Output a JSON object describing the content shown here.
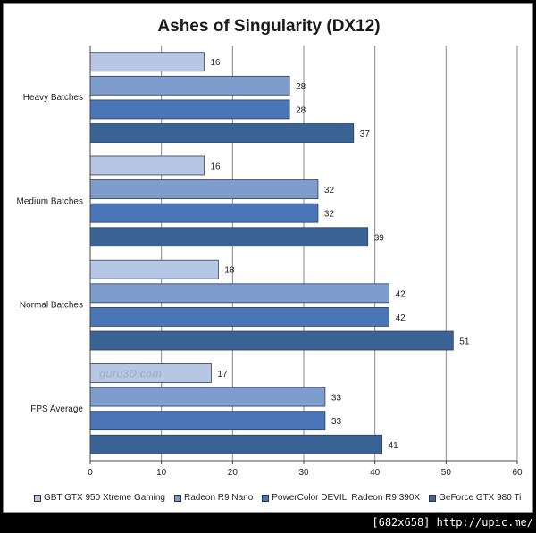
{
  "chart_data": {
    "type": "bar",
    "orientation": "horizontal",
    "title": "Ashes of Singularity (DX12)",
    "categories": [
      "Heavy Batches",
      "Medium Batches",
      "Normal Batches",
      "FPS Average"
    ],
    "xlim": [
      0,
      60
    ],
    "xticks": [
      0,
      10,
      20,
      30,
      40,
      50,
      60
    ],
    "grid": true,
    "legend_position": "bottom",
    "series": [
      {
        "name": "GBT GTX 950 Xtreme Gaming",
        "color": "#b7c7e3",
        "values": [
          16,
          16,
          18,
          17
        ]
      },
      {
        "name": "Radeon R9 Nano",
        "color": "#7e9dcd",
        "values": [
          28,
          32,
          42,
          33
        ]
      },
      {
        "name": "PowerColor DEVIL  Radeon R9 390X",
        "color": "#4a76b8",
        "values": [
          28,
          32,
          42,
          33
        ]
      },
      {
        "name": "GeForce GTX 980 Ti",
        "color": "#3a6396",
        "values": [
          37,
          39,
          51,
          41
        ]
      }
    ],
    "watermark": "guru3D.com"
  },
  "footer_text": "[682x658] http://upic.me/"
}
